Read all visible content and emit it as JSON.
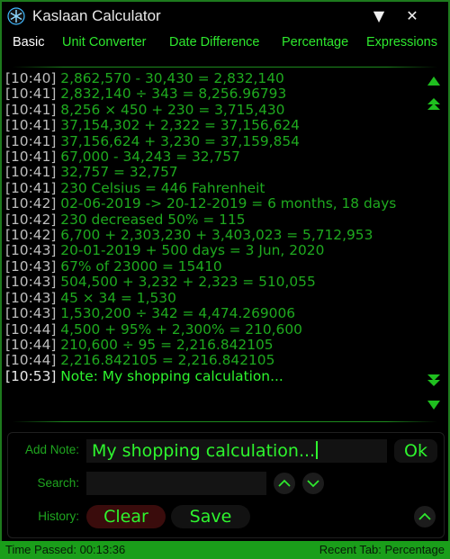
{
  "window": {
    "title": "Kaslaan Calculator",
    "minimize_glyph": "▼",
    "close_glyph": "✕",
    "colors": {
      "accent": "#2ee82e",
      "border": "#1d7a1d",
      "status_bar": "#1a9e1a",
      "clear_button": "#3a0c0c"
    }
  },
  "tabs": [
    {
      "label": "Basic",
      "active": true
    },
    {
      "label": "Unit Converter",
      "active": false
    },
    {
      "label": "Date Difference",
      "active": false
    },
    {
      "label": "Percentage",
      "active": false
    },
    {
      "label": "Expressions",
      "active": false
    }
  ],
  "history": [
    {
      "time": "[10:40]",
      "expr": "2,862,570 - 30,430 = 2,832,140"
    },
    {
      "time": "[10:41]",
      "expr": "2,832,140 ÷ 343 = 8,256.96793"
    },
    {
      "time": "[10:41]",
      "expr": "8,256 × 450 + 230 = 3,715,430"
    },
    {
      "time": "[10:41]",
      "expr": "37,154,302 + 2,322 = 37,156,624"
    },
    {
      "time": "[10:41]",
      "expr": "37,156,624 + 3,230 = 37,159,854"
    },
    {
      "time": "[10:41]",
      "expr": "67,000 - 34,243 = 32,757"
    },
    {
      "time": "[10:41]",
      "expr": "32,757 = 32,757"
    },
    {
      "time": "[10:41]",
      "expr": "230 Celsius = 446 Fahrenheit"
    },
    {
      "time": "[10:42]",
      "expr": "02-06-2019 -> 20-12-2019 = 6 months, 18 days"
    },
    {
      "time": "[10:42]",
      "expr": "230 decreased 50% = 115"
    },
    {
      "time": "[10:42]",
      "expr": "6,700 + 2,303,230 + 3,403,023 = 5,712,953"
    },
    {
      "time": "[10:43]",
      "expr": "20-01-2019 + 500 days = 3 Jun, 2020"
    },
    {
      "time": "[10:43]",
      "expr": "67% of 23000 = 15410"
    },
    {
      "time": "[10:43]",
      "expr": "504,500 + 3,232 + 2,323 = 510,055"
    },
    {
      "time": "[10:43]",
      "expr": "45 × 34 = 1,530"
    },
    {
      "time": "[10:43]",
      "expr": "1,530,200 ÷ 342 = 4,474.269006"
    },
    {
      "time": "[10:44]",
      "expr": "4,500 + 95% + 2,300% = 210,600"
    },
    {
      "time": "[10:44]",
      "expr": "210,600 ÷ 95 = 2,216.842105"
    },
    {
      "time": "[10:44]",
      "expr": "2,216.842105 = 2,216.842105"
    },
    {
      "time": "[10:53]",
      "expr": "Note: My shopping calculation..."
    }
  ],
  "form": {
    "add_note_label": "Add Note:",
    "note_value": "My shopping calculation...",
    "ok_label": "Ok",
    "search_label": "Search:",
    "search_value": "",
    "history_label": "History:",
    "clear_label": "Clear",
    "save_label": "Save"
  },
  "status": {
    "time_passed": "Time Passed: 00:13:36",
    "recent_tab": "Recent Tab: Percentage"
  }
}
